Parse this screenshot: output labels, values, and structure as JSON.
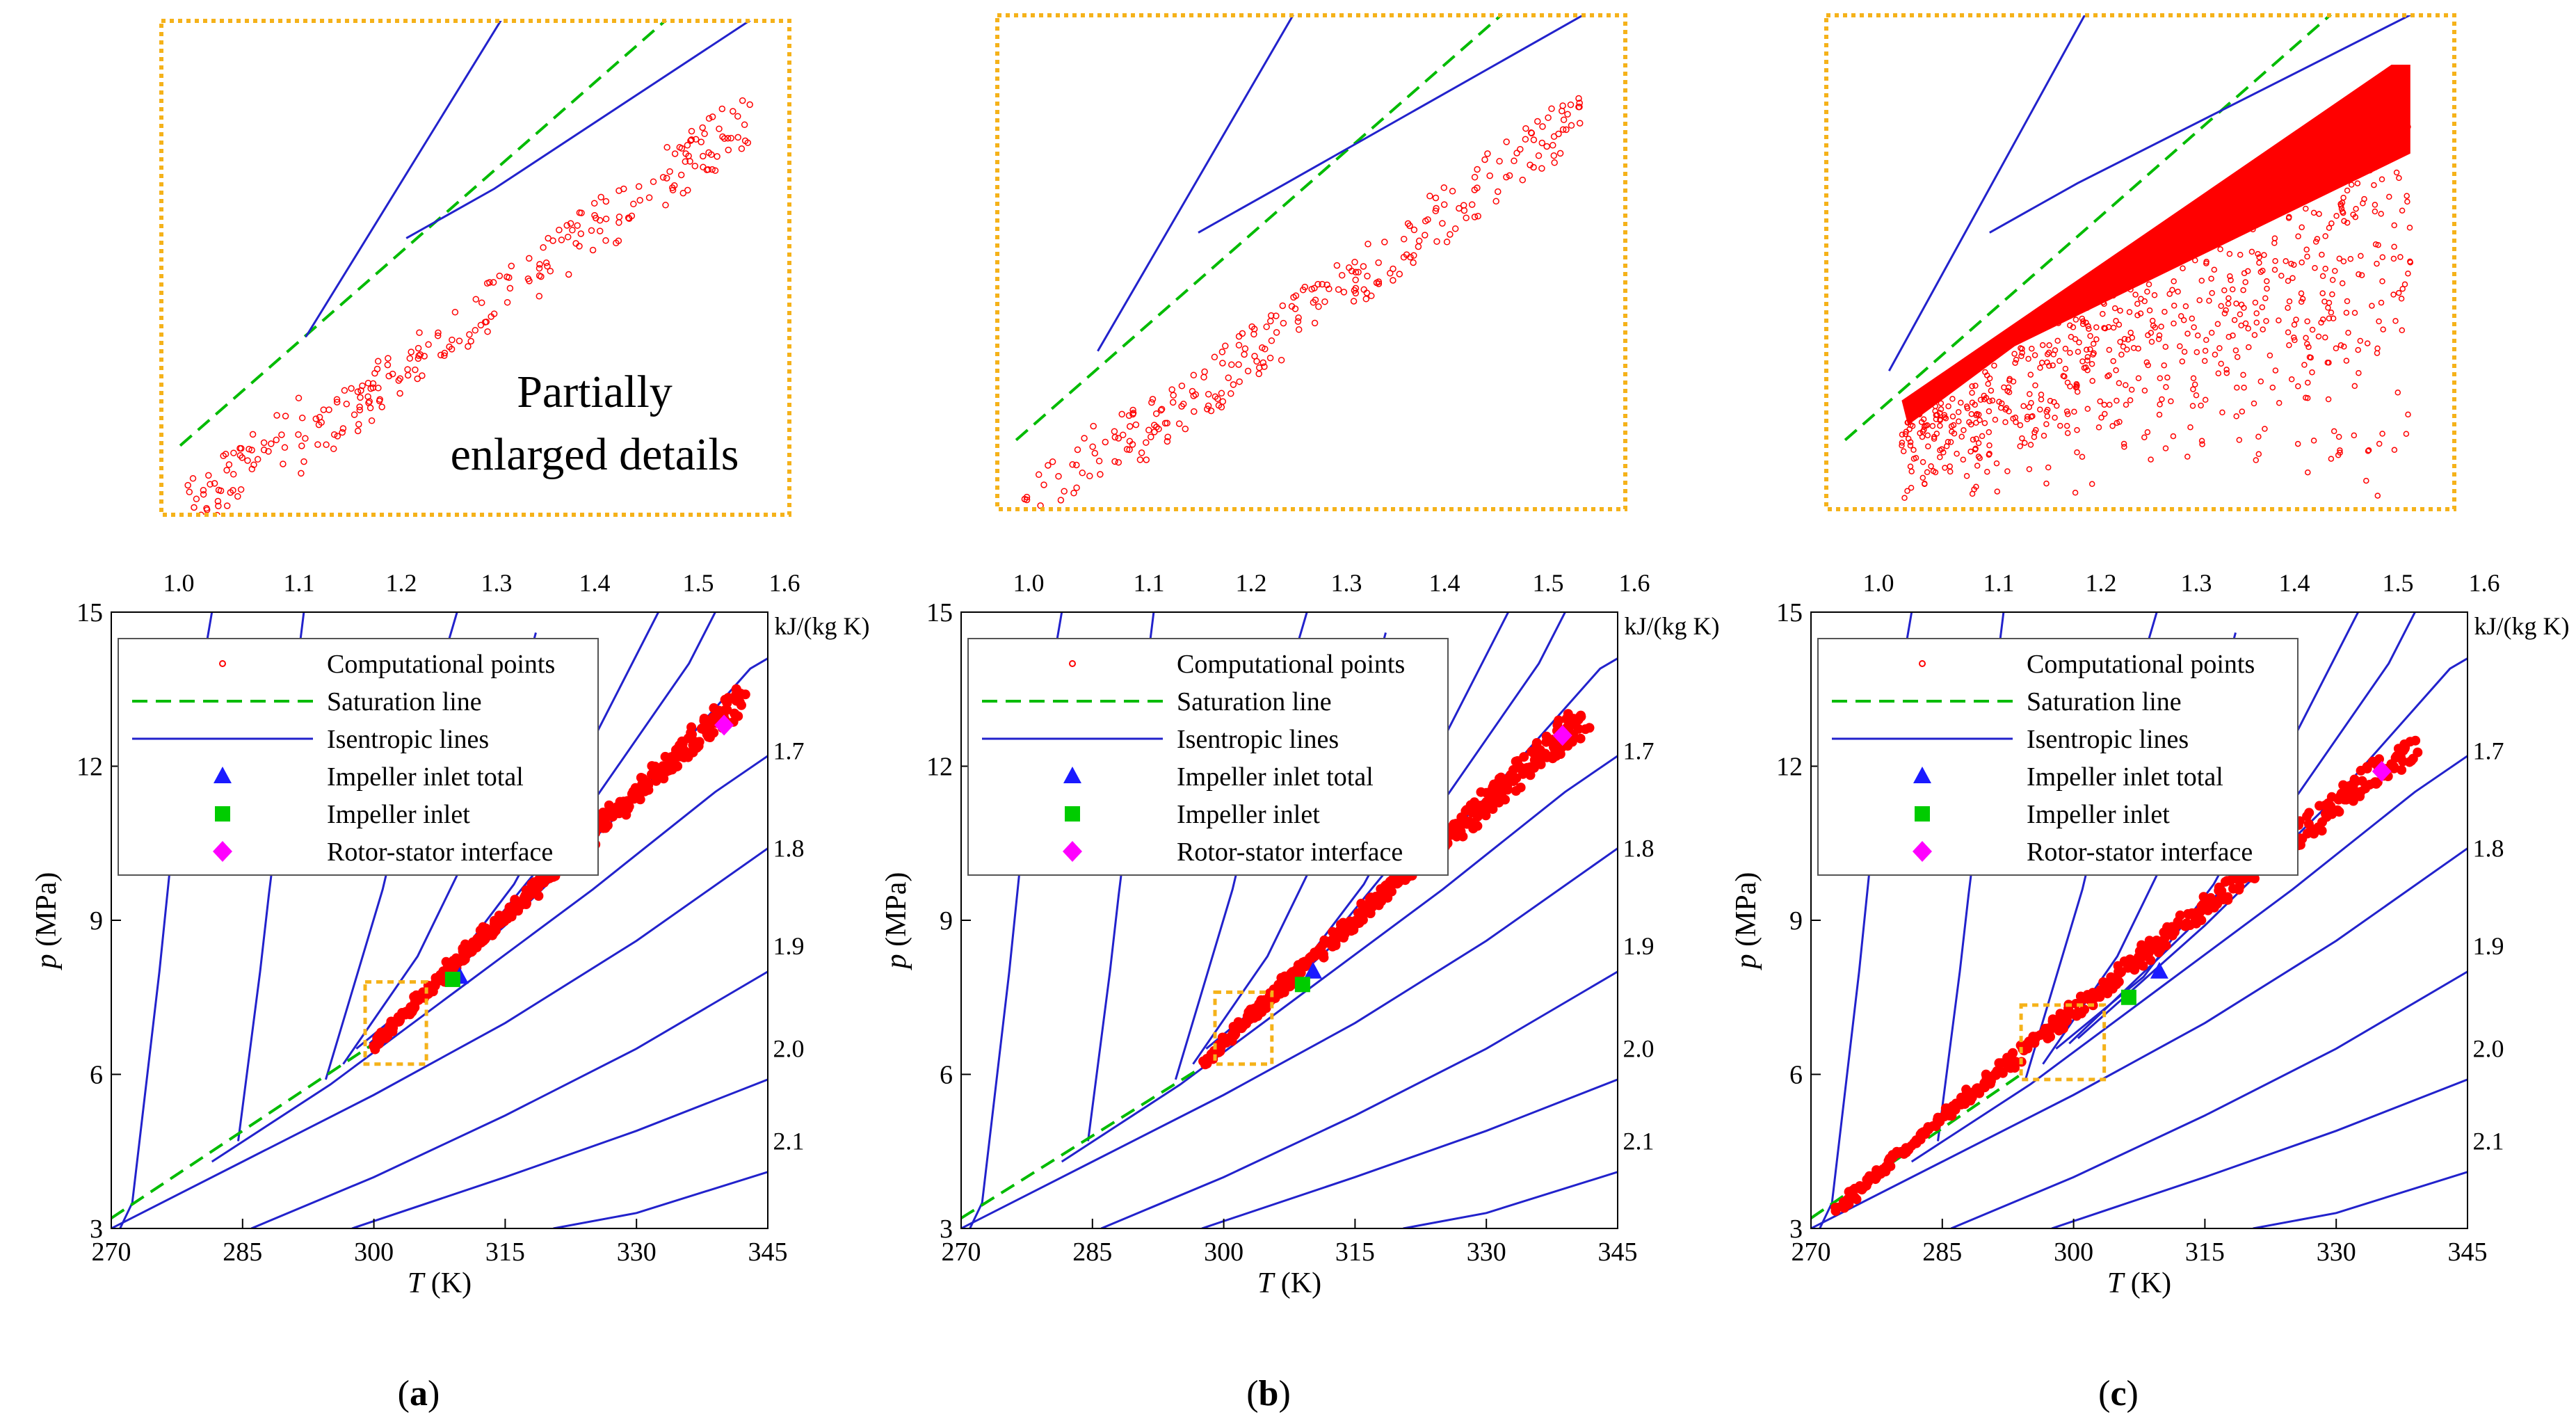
{
  "inset_label": [
    "Partially",
    "enlarged details"
  ],
  "colors": {
    "computational": "#ff0000",
    "saturation": "#00bb00",
    "isentropic": "#2222cc",
    "impeller_inlet_total": "#1a1aff",
    "impeller_inlet": "#00cc00",
    "rotor_stator": "#ff00ff",
    "zoom_box": "#f5b21a"
  },
  "chart_data": [
    {
      "type": "scatter",
      "panel": "(a)",
      "xlabel": "T (K)",
      "ylabel": "p (MPa)",
      "xlim": [
        270,
        345
      ],
      "ylim": [
        3,
        15
      ],
      "xticks": [
        270,
        285,
        300,
        315,
        330,
        345
      ],
      "yticks": [
        3,
        6,
        9,
        12,
        15
      ],
      "isentrope_unit": "kJ/(kg K)",
      "isentrope_labels": [
        "1.0",
        "1.1",
        "1.2",
        "1.3",
        "1.4",
        "1.5",
        "1.6",
        "1.7",
        "1.8",
        "1.9",
        "2.0",
        "2.1"
      ],
      "legend": [
        "Computational points",
        "Saturation line",
        "Isentropic lines",
        "Impeller inlet total",
        "Impeller inlet",
        "Rotor-stator interface"
      ],
      "legend_position": "top-left",
      "saturation_line": {
        "x": [
          270,
          300
        ],
        "y": [
          3.2,
          6.6
        ]
      },
      "computational_points": {
        "x_range": [
          300,
          342
        ],
        "y_range": [
          6.6,
          13.6
        ]
      },
      "impeller_inlet_total": [
        309.8,
        7.9
      ],
      "impeller_inlet": [
        309,
        7.85
      ],
      "rotor_stator_interface": [
        340,
        12.8
      ],
      "zoom_region": {
        "x": [
          299,
          306
        ],
        "y": [
          6.2,
          7.8
        ]
      }
    },
    {
      "type": "scatter",
      "panel": "(b)",
      "xlabel": "T (K)",
      "ylabel": "p (MPa)",
      "xlim": [
        270,
        345
      ],
      "ylim": [
        3,
        15
      ],
      "xticks": [
        270,
        285,
        300,
        315,
        330,
        345
      ],
      "yticks": [
        3,
        6,
        9,
        12,
        15
      ],
      "isentrope_unit": "kJ/(kg K)",
      "isentrope_labels": [
        "1.0",
        "1.1",
        "1.2",
        "1.3",
        "1.4",
        "1.5",
        "1.6",
        "1.7",
        "1.8",
        "1.9",
        "2.0",
        "2.1"
      ],
      "legend": [
        "Computational points",
        "Saturation line",
        "Isentropic lines",
        "Impeller inlet total",
        "Impeller inlet",
        "Rotor-stator interface"
      ],
      "legend_position": "top-left",
      "saturation_line": {
        "x": [
          270,
          299
        ],
        "y": [
          3.2,
          6.3
        ]
      },
      "computational_points": {
        "x_range": [
          298,
          341
        ],
        "y_range": [
          6.3,
          13.2
        ]
      },
      "impeller_inlet_total": [
        310.2,
        8.0
      ],
      "impeller_inlet": [
        309,
        7.75
      ],
      "rotor_stator_interface": [
        338.7,
        12.6
      ],
      "zoom_region": {
        "x": [
          299,
          305.5
        ],
        "y": [
          6.2,
          7.6
        ]
      }
    },
    {
      "type": "scatter",
      "panel": "(c)",
      "xlabel": "T (K)",
      "ylabel": "p (MPa)",
      "xlim": [
        270,
        345
      ],
      "ylim": [
        3,
        15
      ],
      "xticks": [
        270,
        285,
        300,
        315,
        330,
        345
      ],
      "yticks": [
        3,
        6,
        9,
        12,
        15
      ],
      "isentrope_unit": "kJ/(kg K)",
      "isentrope_labels": [
        "1.0",
        "1.1",
        "1.2",
        "1.3",
        "1.4",
        "1.5",
        "1.6",
        "1.7",
        "1.8",
        "1.9",
        "2.0",
        "2.1"
      ],
      "legend": [
        "Computational points",
        "Saturation line",
        "Isentropic lines",
        "Impeller inlet total",
        "Impeller inlet",
        "Rotor-stator interface"
      ],
      "legend_position": "top-left",
      "saturation_line": {
        "x": [
          270,
          294
        ],
        "y": [
          3.2,
          6.0
        ]
      },
      "computational_points": {
        "x_range": [
          273,
          339
        ],
        "y_range": [
          3.4,
          12.7
        ]
      },
      "impeller_inlet_total": [
        309.8,
        8.0
      ],
      "impeller_inlet": [
        306.3,
        7.5
      ],
      "rotor_stator_interface": [
        335.2,
        11.9
      ],
      "zoom_region": {
        "x": [
          294,
          303.5
        ],
        "y": [
          5.9,
          7.35
        ]
      }
    }
  ],
  "panel_labels": [
    "(a)",
    "(b)",
    "(c)"
  ]
}
